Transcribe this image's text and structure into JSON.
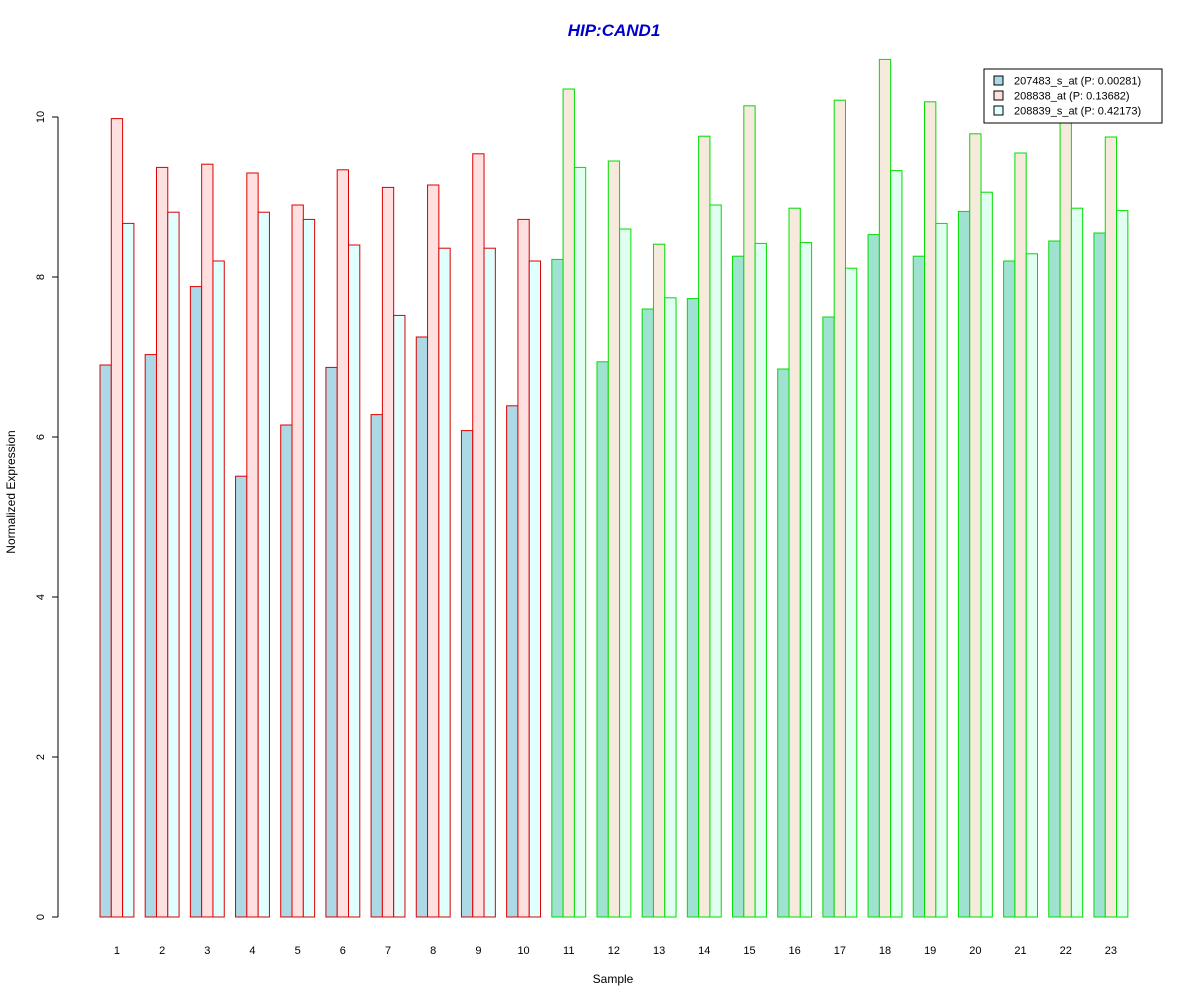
{
  "chart_data": {
    "type": "bar",
    "title": "HIP:CAND1",
    "xlabel": "Sample",
    "ylabel": "Normalized Expression",
    "ylim": [
      0,
      10
    ],
    "yticks": [
      "0",
      "2",
      "4",
      "6",
      "8",
      "10"
    ],
    "categories": [
      "1",
      "2",
      "3",
      "4",
      "5",
      "6",
      "7",
      "8",
      "9",
      "10",
      "11",
      "12",
      "13",
      "14",
      "15",
      "16",
      "17",
      "18",
      "19",
      "20",
      "21",
      "22",
      "23"
    ],
    "group_border_colors": [
      "#dd0000",
      "#dd0000",
      "#dd0000",
      "#dd0000",
      "#dd0000",
      "#dd0000",
      "#dd0000",
      "#dd0000",
      "#dd0000",
      "#dd0000",
      "#00dd00",
      "#00dd00",
      "#00dd00",
      "#00dd00",
      "#00dd00",
      "#00dd00",
      "#00dd00",
      "#00dd00",
      "#00dd00",
      "#00dd00",
      "#00dd00",
      "#00dd00",
      "#00dd00"
    ],
    "series": [
      {
        "name": "207483_s_at (P: 0.00281)",
        "fill_group1": "#add8e6",
        "fill_group2": "#a0e2d2",
        "values": [
          6.9,
          7.03,
          7.88,
          5.51,
          6.15,
          6.87,
          6.28,
          7.25,
          6.08,
          6.39,
          8.22,
          6.94,
          7.6,
          7.73,
          8.26,
          6.85,
          7.5,
          8.53,
          8.26,
          8.82,
          8.2,
          8.45,
          8.55
        ]
      },
      {
        "name": "208838_at (P: 0.13682)",
        "fill_group1": "#ffe0e0",
        "fill_group2": "#f5eadc",
        "values": [
          9.98,
          9.37,
          9.41,
          9.3,
          8.9,
          9.34,
          9.12,
          9.15,
          9.54,
          8.72,
          10.35,
          9.45,
          8.41,
          9.76,
          10.14,
          8.86,
          10.21,
          10.72,
          10.19,
          9.79,
          9.55,
          10.0,
          9.75
        ]
      },
      {
        "name": "208839_s_at (P: 0.42173)",
        "fill_group1": "#e0ffff",
        "fill_group2": "#e0fff0",
        "values": [
          8.67,
          8.81,
          8.2,
          8.81,
          8.72,
          8.4,
          7.52,
          8.36,
          8.36,
          8.2,
          9.37,
          8.6,
          7.74,
          8.9,
          8.42,
          8.43,
          8.11,
          9.33,
          8.67,
          9.06,
          8.29,
          8.86,
          8.83
        ]
      }
    ],
    "legend_placement": "top-right",
    "legend_swatch_colors": [
      "#add8e6",
      "#ffe0e0",
      "#e0ffff"
    ],
    "title_color": "#0000cc",
    "grid": false
  }
}
